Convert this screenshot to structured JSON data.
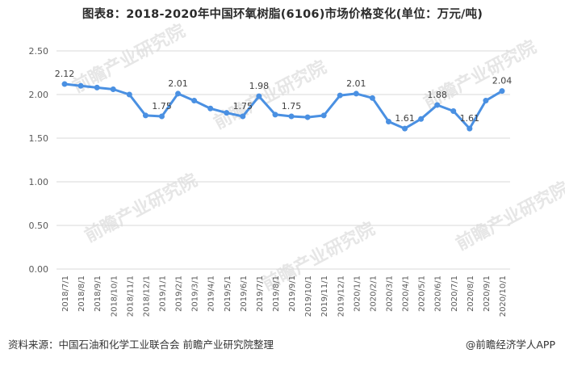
{
  "title": "图表8：2018-2020年中国环氧树脂(6106)市场价格变化(单位：万元/吨)",
  "footer": {
    "source": "资料来源：中国石油和化学工业联合会 前瞻产业研究院整理",
    "brand": "@前瞻经济学人APP"
  },
  "watermark": "前瞻产业研究院",
  "colors": {
    "line": "#4a90e2",
    "grid": "#d9d9d9",
    "text": "#595959"
  },
  "chart_data": {
    "type": "line",
    "title": "图表8：2018-2020年中国环氧树脂(6106)市场价格变化(单位：万元/吨)",
    "xlabel": "",
    "ylabel": "",
    "ylim": [
      0,
      2.5
    ],
    "yticks": [
      "0.00",
      "0.50",
      "1.00",
      "1.50",
      "2.00",
      "2.50"
    ],
    "grid": "horizontal",
    "legend": "none",
    "categories": [
      "2018/7/1",
      "2018/8/1",
      "2018/9/1",
      "2018/10/1",
      "2018/11/1",
      "2018/12/1",
      "2019/1/1",
      "2019/2/1",
      "2019/3/1",
      "2019/4/1",
      "2019/5/1",
      "2019/6/1",
      "2019/7/1",
      "2019/8/1",
      "2019/9/1",
      "2019/10/1",
      "2019/11/1",
      "2019/12/1",
      "2020/1/1",
      "2020/2/1",
      "2020/3/1",
      "2020/4/1",
      "2020/5/1",
      "2020/6/1",
      "2020/7/1",
      "2020/8/1",
      "2020/9/1",
      "2020/10/1"
    ],
    "values": [
      2.12,
      2.1,
      2.08,
      2.06,
      2.0,
      1.76,
      1.75,
      2.01,
      1.93,
      1.84,
      1.79,
      1.75,
      1.98,
      1.77,
      1.75,
      1.74,
      1.76,
      1.99,
      2.01,
      1.96,
      1.69,
      1.61,
      1.72,
      1.88,
      1.81,
      1.61,
      1.93,
      2.04
    ],
    "data_labels": [
      {
        "index": 0,
        "text": "2.12"
      },
      {
        "index": 6,
        "text": "1.75"
      },
      {
        "index": 7,
        "text": "2.01"
      },
      {
        "index": 11,
        "text": "1.75"
      },
      {
        "index": 12,
        "text": "1.98"
      },
      {
        "index": 14,
        "text": "1.75"
      },
      {
        "index": 18,
        "text": "2.01"
      },
      {
        "index": 21,
        "text": "1.61"
      },
      {
        "index": 23,
        "text": "1.88"
      },
      {
        "index": 25,
        "text": "1.61"
      },
      {
        "index": 27,
        "text": "2.04"
      }
    ]
  }
}
